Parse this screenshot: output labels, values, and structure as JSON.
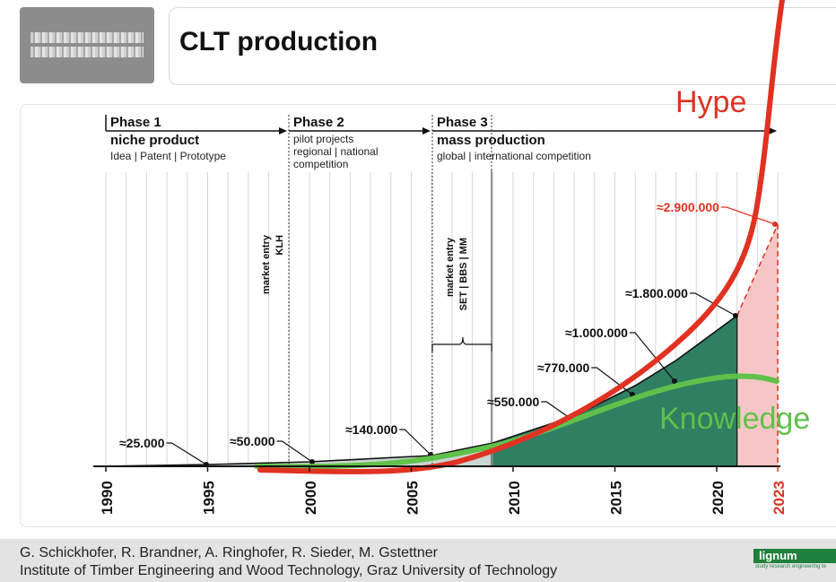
{
  "slide": {
    "title": "CLT production"
  },
  "footer": {
    "authors": "G. Schickhofer, R. Brandner, A. Ringhofer, R. Sieder, M. Gstettner",
    "institute": "Institute of Timber Engineering and Wood Technology, Graz University of Technology"
  },
  "logo": {
    "name": "lignum",
    "tagline": "study research engineering te"
  },
  "colors": {
    "hype": "#e03222",
    "knowledge": "#5fc14a",
    "area": "#2f7f62",
    "forecast": "#f6c6c6",
    "accent": "#1f7f3c"
  },
  "phases": [
    {
      "label": "Phase 1",
      "title": "niche product",
      "desc": [
        "Idea | Patent | Prototype"
      ]
    },
    {
      "label": "Phase 2",
      "title": "",
      "desc": [
        "pilot projects",
        "regional | national",
        "competition"
      ]
    },
    {
      "label": "Phase 3",
      "title": "mass production",
      "desc": [
        "global | international competition"
      ]
    }
  ],
  "market_entries": [
    {
      "lines": [
        "market entry",
        "KLH"
      ]
    },
    {
      "lines": [
        "market entry",
        "SET | BBS | MM"
      ]
    }
  ],
  "curve_labels": {
    "hype": "Hype",
    "knowledge": "Knowledge"
  },
  "chart_data": {
    "type": "area",
    "title": "",
    "xlabel": "",
    "ylabel": "",
    "x_ticks": [
      "1990",
      "1995",
      "2000",
      "2005",
      "2010",
      "2015",
      "2020",
      "2023"
    ],
    "highlight_tick": "2023",
    "xlim": [
      1990,
      2023
    ],
    "series": [
      {
        "name": "",
        "x": [
          1990,
          1995,
          2000,
          2006,
          2009,
          2013,
          2016,
          2018,
          2021,
          2023
        ],
        "y": [
          0,
          25000,
          50000,
          140000,
          300000,
          550000,
          770000,
          1000000,
          1800000,
          2900000
        ]
      }
    ],
    "value_labels": [
      {
        "x": 1995,
        "text": "≈25.000"
      },
      {
        "x": 2000,
        "text": "≈50.000"
      },
      {
        "x": 2006,
        "text": "≈140.000"
      },
      {
        "x": 2013,
        "text": "≈550.000"
      },
      {
        "x": 2016,
        "text": "≈770.000"
      },
      {
        "x": 2018,
        "text": "≈1.000.000"
      },
      {
        "x": 2021,
        "text": "≈1.800.000"
      },
      {
        "x": 2023,
        "text": "≈2.900.000"
      }
    ]
  }
}
